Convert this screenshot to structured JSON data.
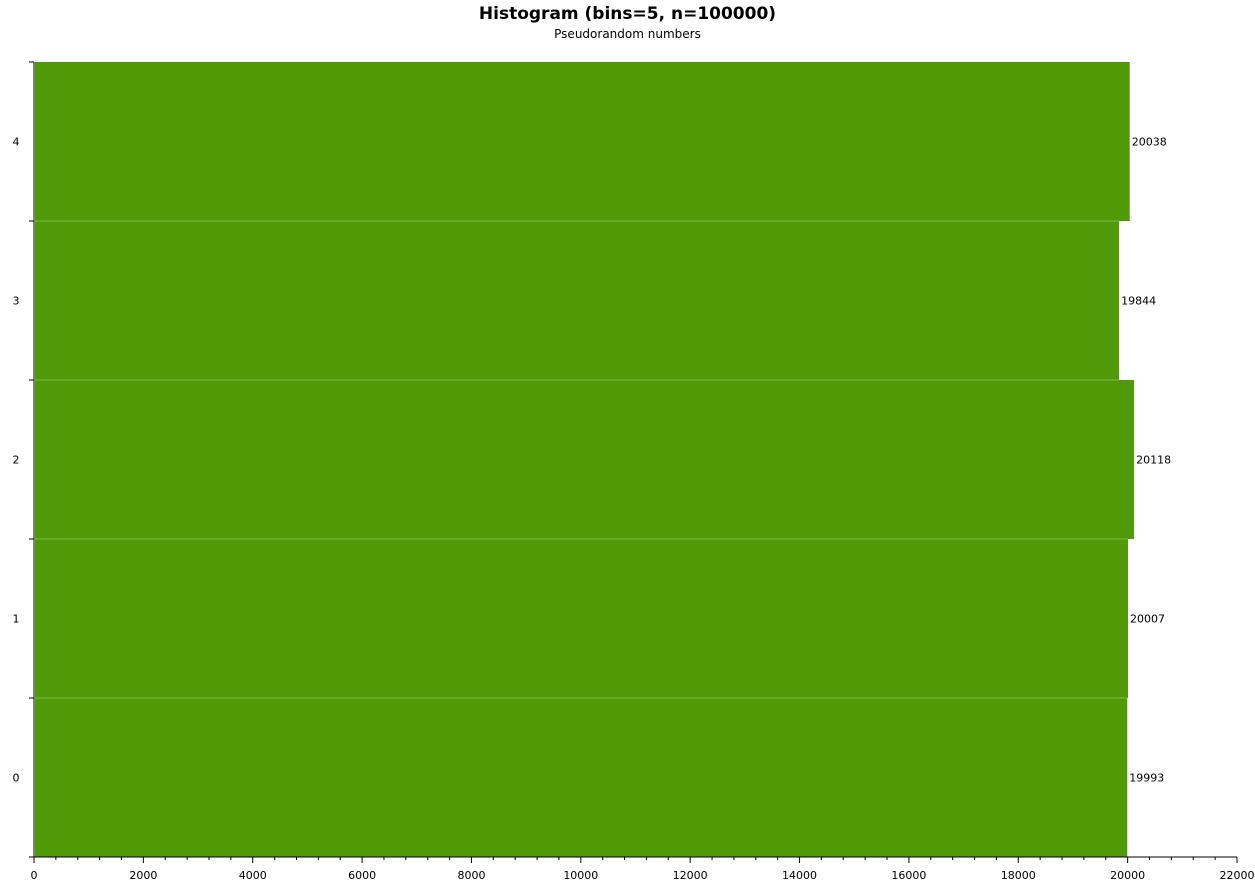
{
  "chart_data": {
    "type": "bar",
    "orientation": "horizontal",
    "title": "Histogram (bins=5, n=100000)",
    "subtitle": "Pseudorandom numbers",
    "categories": [
      "0",
      "1",
      "2",
      "3",
      "4"
    ],
    "values": [
      19993,
      20007,
      20118,
      19844,
      20038
    ],
    "data_labels": [
      "19993",
      "20007",
      "20118",
      "19844",
      "20038"
    ],
    "xlim": [
      0,
      22000
    ],
    "x_ticks": [
      0,
      2000,
      4000,
      6000,
      8000,
      10000,
      12000,
      14000,
      16000,
      18000,
      20000,
      22000
    ],
    "x_tick_labels": [
      "0",
      "2000",
      "4000",
      "6000",
      "8000",
      "10000",
      "12000",
      "14000",
      "16000",
      "18000",
      "20000",
      "22000"
    ],
    "bar_color": "#4f9a06",
    "separator_color": "#7ab84a",
    "grid": false,
    "legend": "none"
  }
}
